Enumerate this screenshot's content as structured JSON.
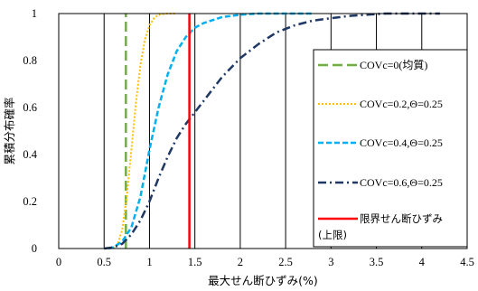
{
  "chart_data": {
    "type": "line",
    "title": "",
    "xlabel": "最大せん断ひずみ(%)",
    "ylabel": "累積分布確率",
    "xlim": [
      0,
      4.5
    ],
    "ylim": [
      0,
      1
    ],
    "x_ticks": [
      "0",
      "0.5",
      "1",
      "1.5",
      "2",
      "2.5",
      "3",
      "3.5",
      "4",
      "4.5"
    ],
    "y_ticks": [
      "0",
      "0.2",
      "0.4",
      "0.6",
      "0.8",
      "1"
    ],
    "grid": "vertical",
    "legend_position": "right",
    "series": [
      {
        "name": "COVc=0(均質)",
        "color": "#70ad47",
        "style": "long-dash",
        "x": [
          0.74,
          0.74
        ],
        "y": [
          0,
          1
        ]
      },
      {
        "name": "COVc=0.2,Θ=0.25",
        "color": "#ffc000",
        "style": "dotted",
        "x": [
          0.6,
          0.65,
          0.7,
          0.75,
          0.8,
          0.85,
          0.9,
          0.95,
          1.0,
          1.05,
          1.1,
          1.2,
          1.3
        ],
        "y": [
          0,
          0.02,
          0.08,
          0.22,
          0.42,
          0.62,
          0.78,
          0.89,
          0.95,
          0.98,
          0.995,
          1.0,
          1.0
        ]
      },
      {
        "name": "COVc=0.4,Θ=0.25",
        "color": "#00b0f0",
        "style": "dashed",
        "x": [
          0.55,
          0.6,
          0.7,
          0.8,
          0.9,
          1.0,
          1.1,
          1.2,
          1.3,
          1.4,
          1.5,
          1.6,
          1.8,
          2.0,
          2.2,
          2.5,
          2.8
        ],
        "y": [
          0,
          0.005,
          0.03,
          0.09,
          0.22,
          0.42,
          0.6,
          0.74,
          0.84,
          0.9,
          0.94,
          0.96,
          0.985,
          0.995,
          1.0,
          1.0,
          1.0
        ]
      },
      {
        "name": "COVc=0.6,Θ=0.25",
        "color": "#1f3864",
        "style": "dash-dot",
        "x": [
          0.5,
          0.6,
          0.7,
          0.8,
          0.9,
          1.0,
          1.1,
          1.2,
          1.3,
          1.4,
          1.5,
          1.6,
          1.8,
          2.0,
          2.2,
          2.4,
          2.6,
          2.8,
          3.0,
          3.2,
          3.4,
          3.6,
          3.8,
          4.0,
          4.2
        ],
        "y": [
          0,
          0.005,
          0.02,
          0.06,
          0.12,
          0.2,
          0.3,
          0.39,
          0.47,
          0.53,
          0.58,
          0.63,
          0.73,
          0.81,
          0.87,
          0.92,
          0.95,
          0.97,
          0.98,
          0.99,
          0.995,
          1.0,
          1.0,
          1.0,
          1.0
        ]
      },
      {
        "name": "限界せん断ひずみ(上限)",
        "color": "#ff0000",
        "style": "solid",
        "x": [
          1.44,
          1.44
        ],
        "y": [
          0,
          1
        ]
      }
    ],
    "legend": [
      {
        "label": "COVc=0(均質)"
      },
      {
        "label": "COVc=0.2,Θ=0.25"
      },
      {
        "label": "COVc=0.4,Θ=0.25"
      },
      {
        "label": "COVc=0.6,Θ=0.25"
      },
      {
        "label_line1": "限界せん断ひずみ",
        "label_line2": "(上限)"
      }
    ]
  }
}
